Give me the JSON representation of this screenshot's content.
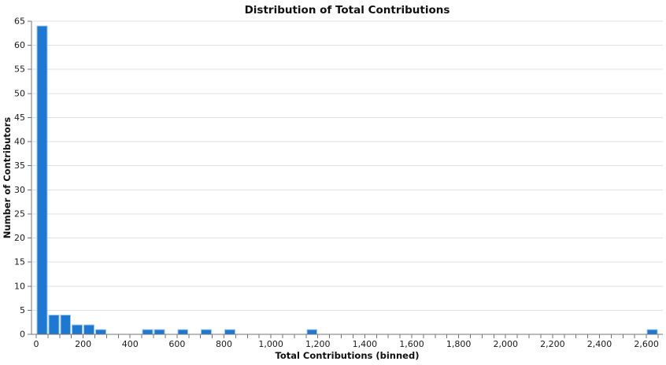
{
  "chart_data": {
    "type": "bar",
    "subtype": "histogram",
    "title": "Distribution of Total Contributions",
    "xlabel": "Total Contributions (binned)",
    "ylabel": "Number of Contributors",
    "bin_width": 50,
    "bins": [
      {
        "start": 0,
        "count": 64
      },
      {
        "start": 50,
        "count": 4
      },
      {
        "start": 100,
        "count": 4
      },
      {
        "start": 150,
        "count": 2
      },
      {
        "start": 200,
        "count": 2
      },
      {
        "start": 250,
        "count": 1
      },
      {
        "start": 450,
        "count": 1
      },
      {
        "start": 500,
        "count": 1
      },
      {
        "start": 600,
        "count": 1
      },
      {
        "start": 700,
        "count": 1
      },
      {
        "start": 800,
        "count": 1
      },
      {
        "start": 1150,
        "count": 1
      },
      {
        "start": 2600,
        "count": 1
      }
    ],
    "xlim": [
      -20,
      2670
    ],
    "ylim": [
      0,
      65
    ],
    "x_label_step": 200,
    "x_minor_tick_step": 50,
    "x_minor_tick_max": 2650,
    "x_tick_labels": [
      "0",
      "200",
      "400",
      "600",
      "800",
      "1,000",
      "1,200",
      "1,400",
      "1,600",
      "1,800",
      "2,000",
      "2,200",
      "2,400",
      "2,600"
    ],
    "y_tick_step": 5,
    "y_tick_labels": [
      "0",
      "5",
      "10",
      "15",
      "20",
      "25",
      "30",
      "35",
      "40",
      "45",
      "50",
      "55",
      "60",
      "65"
    ],
    "grid": "horizontal",
    "legend": false,
    "colors": {
      "bar_fill": "#1c78d2",
      "bar_border": "#9ec9ed",
      "grid": "#e0e0e0",
      "axis_line": "#757575",
      "tick_mark": "#757575",
      "text": "#111111",
      "background": "#ffffff"
    }
  }
}
